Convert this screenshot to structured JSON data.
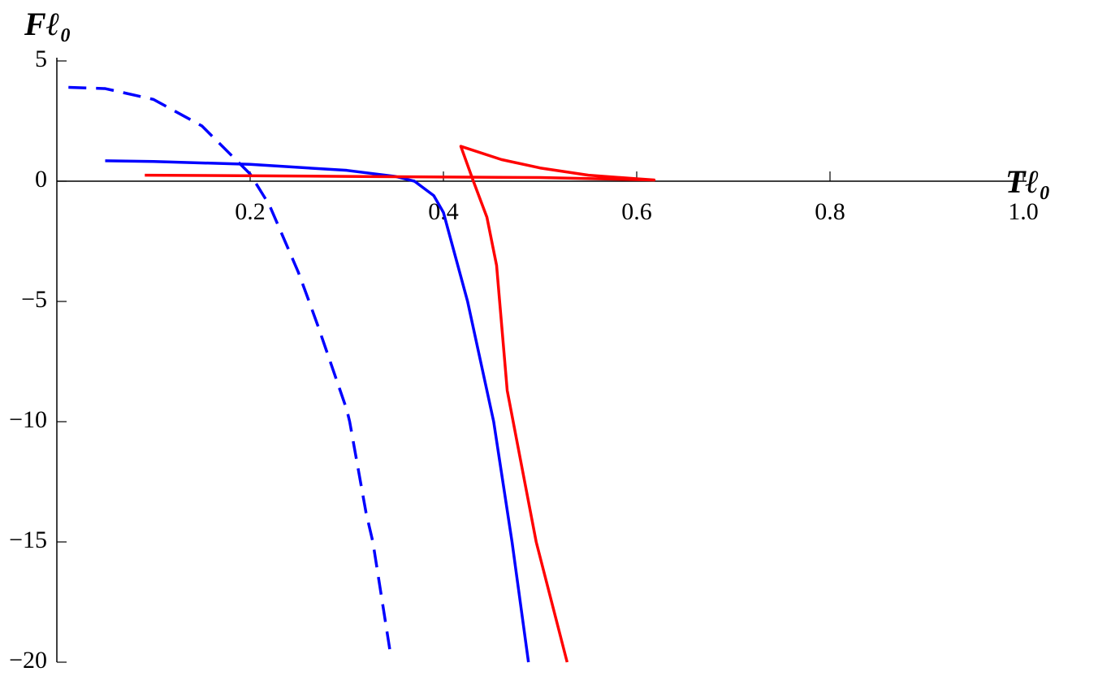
{
  "chart_data": {
    "type": "line",
    "xlabel": "Tℓ₀",
    "ylabel": "Fℓ₀",
    "xlim": [
      0,
      1.0
    ],
    "ylim": [
      -20,
      5
    ],
    "xticks": [
      0.2,
      0.4,
      0.6,
      0.8,
      {
        "value": 1,
        "label": "1.0"
      }
    ],
    "yticks": [
      5,
      0,
      {
        "value": -5,
        "label": "−5"
      },
      {
        "value": -10,
        "label": "−10"
      },
      {
        "value": -15,
        "label": "−15"
      },
      {
        "value": -20,
        "label": "−20"
      }
    ],
    "series": [
      {
        "color": "#0000ff",
        "dashed": true,
        "x": [
          0.012,
          0.05,
          0.1,
          0.15,
          0.2,
          0.22,
          0.25,
          0.261,
          0.27,
          0.3,
          0.303,
          0.32,
          0.327,
          0.345
        ],
        "values": [
          3.9,
          3.85,
          3.4,
          2.3,
          0.3,
          -1,
          -3.8,
          -5,
          -6,
          -9.5,
          -10,
          -13.8,
          -15,
          -19.6
        ]
      },
      {
        "color": "#0000ff",
        "dashed": false,
        "x": [
          0.05,
          0.1,
          0.2,
          0.3,
          0.35,
          0.37,
          0.39,
          0.4,
          0.425,
          0.452,
          0.471,
          0.488
        ],
        "values": [
          0.85,
          0.82,
          0.7,
          0.45,
          0.2,
          0.0,
          -0.6,
          -1.3,
          -5,
          -10,
          -15,
          -20
        ]
      },
      {
        "color": "#ff0000",
        "dashed": false,
        "x": [
          0.091,
          0.3,
          0.5,
          0.618,
          0.6,
          0.55,
          0.5,
          0.46,
          0.418,
          0.431,
          0.445,
          0.455,
          0.466,
          0.496,
          0.528
        ],
        "values": [
          0.25,
          0.2,
          0.15,
          0.05,
          0.1,
          0.25,
          0.55,
          0.9,
          1.45,
          0,
          -1.5,
          -3.5,
          -8.7,
          -15,
          -20
        ]
      }
    ]
  }
}
